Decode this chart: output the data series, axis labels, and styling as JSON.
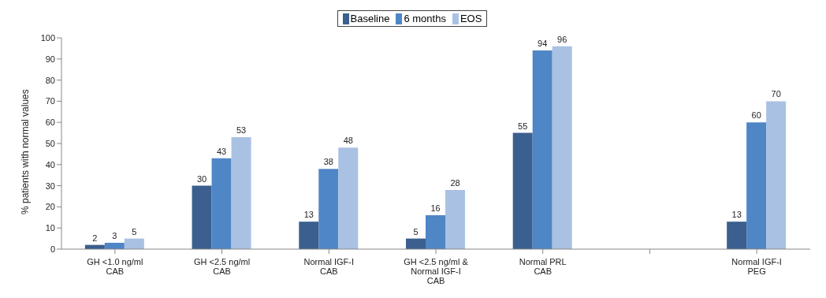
{
  "chart_data": {
    "type": "bar",
    "ylabel": "% patients with normal values",
    "categories": [
      "GH <1.0 ng/ml\nCAB",
      "GH <2.5 ng/ml\nCAB",
      "Normal IGF-I\nCAB",
      "GH <2.5 ng/ml &\nNormal IGF-I\nCAB",
      "Normal PRL\nCAB",
      null,
      "Normal IGF-I\nPEG"
    ],
    "series": [
      {
        "name": "Baseline",
        "color": "#3b5f8e",
        "values": [
          2,
          30,
          13,
          5,
          55,
          null,
          13
        ]
      },
      {
        "name": "6 months",
        "color": "#4f86c6",
        "values": [
          3,
          43,
          38,
          16,
          94,
          null,
          60
        ]
      },
      {
        "name": "EOS",
        "color": "#a9c1e2",
        "values": [
          5,
          53,
          48,
          28,
          96,
          null,
          70
        ]
      }
    ],
    "ylim": [
      0,
      100
    ],
    "yticks": [
      0,
      10,
      20,
      30,
      40,
      50,
      60,
      70,
      80,
      90,
      100
    ],
    "grid": false,
    "legend": "top",
    "data_labels": true
  }
}
